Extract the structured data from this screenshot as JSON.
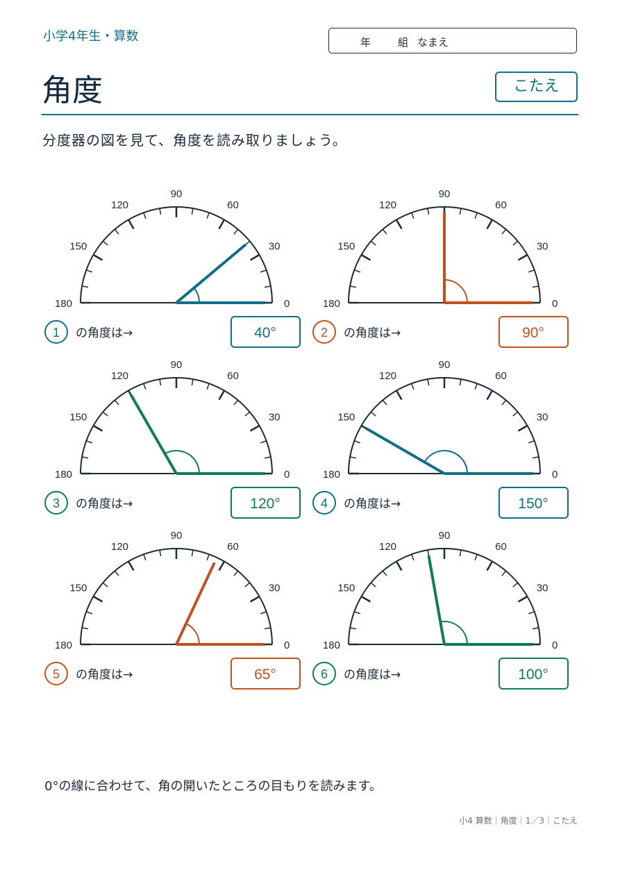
{
  "header": {
    "grade_label": "小学4年生・算数",
    "name_box": {
      "year_label": "年",
      "class_label": "組",
      "name_label": "なまえ"
    },
    "title": "角度",
    "answer_badge": "こたえ",
    "instruction": "分度器の図を見て、角度を読み取りましょう。"
  },
  "colors": {
    "blue": "#106e86",
    "orange": "#c1521f",
    "green": "#0f7d52",
    "ink": "#1c2a3a"
  },
  "scale_labels": [
    "0",
    "30",
    "60",
    "90",
    "120",
    "150",
    "180"
  ],
  "question_suffix": "の角度は→",
  "problems": [
    {
      "number": "1",
      "angle": 40,
      "answer": "40°",
      "color": "blue"
    },
    {
      "number": "2",
      "angle": 90,
      "answer": "90°",
      "color": "orange"
    },
    {
      "number": "3",
      "angle": 120,
      "answer": "120°",
      "color": "green"
    },
    {
      "number": "4",
      "angle": 150,
      "answer": "150°",
      "color": "blue"
    },
    {
      "number": "5",
      "angle": 65,
      "answer": "65°",
      "color": "orange"
    },
    {
      "number": "6",
      "angle": 100,
      "answer": "100°",
      "color": "green"
    }
  ],
  "footer": {
    "note": "0°の線に合わせて、角の開いたところの目もりを読みます。",
    "page_info": "小4 算数｜角度｜1／3｜こたえ"
  }
}
